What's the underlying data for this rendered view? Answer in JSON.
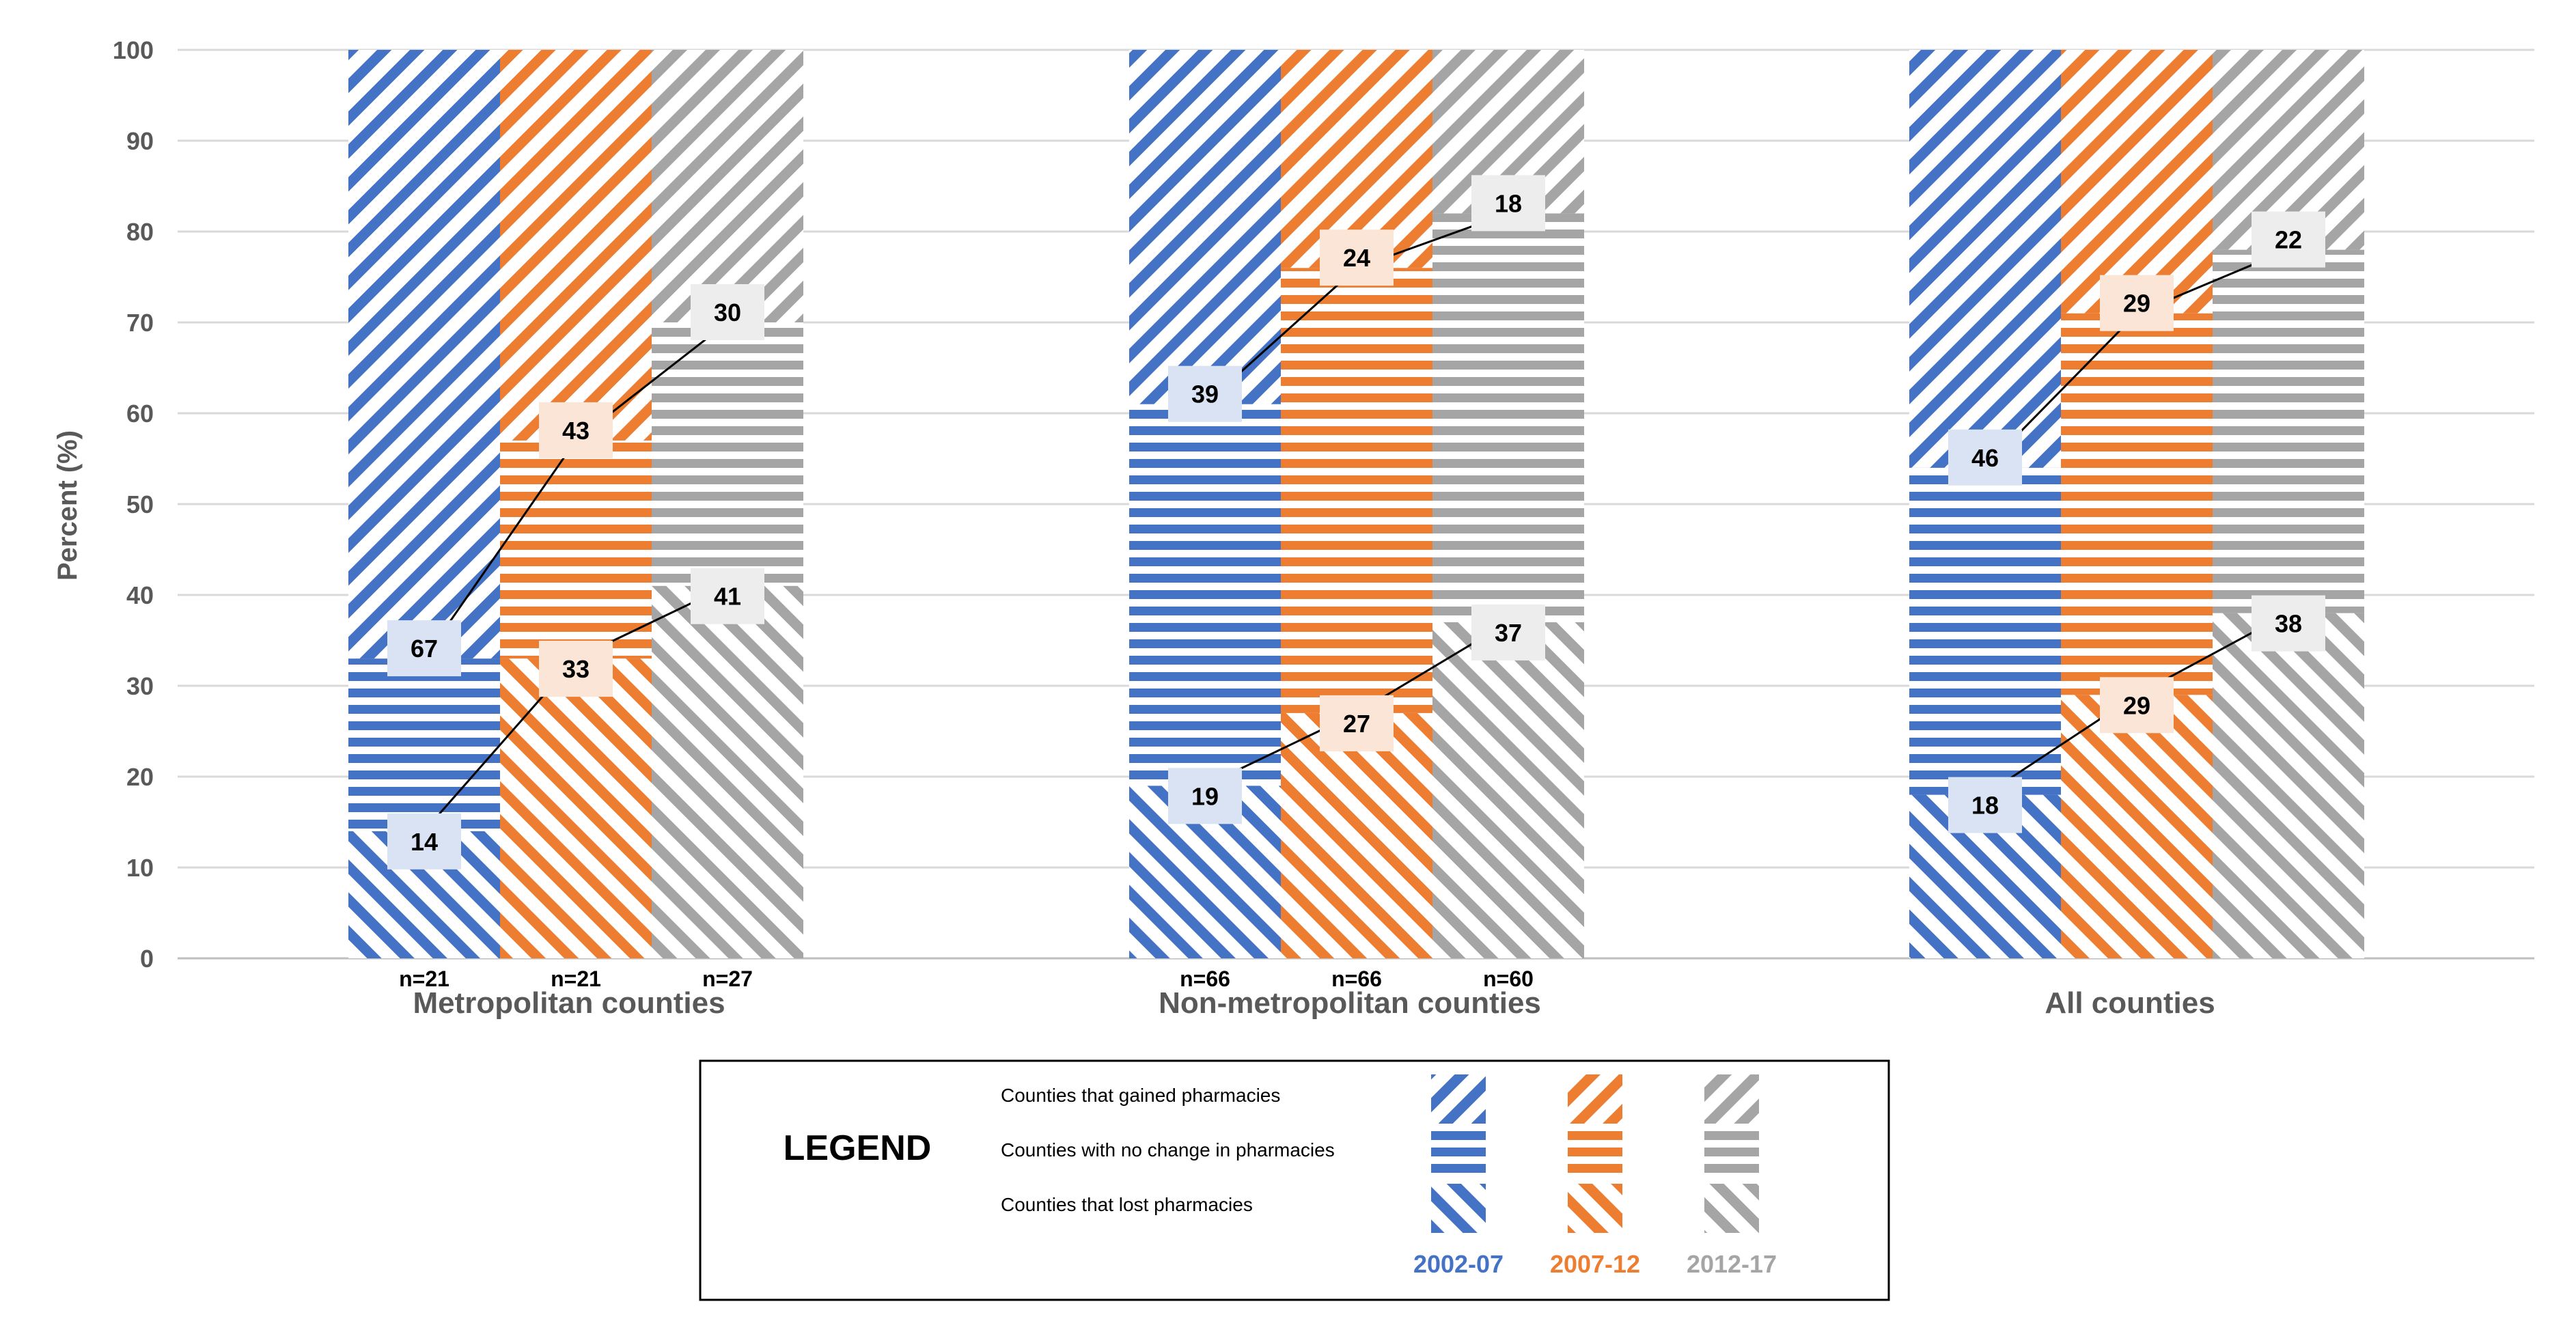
{
  "colors": {
    "blue": "#4472c4",
    "orange": "#ed7d31",
    "gray": "#a5a5a5",
    "blue_label_bg": "#dae3f3",
    "orange_label_bg": "#fbe5d6",
    "gray_label_bg": "#ededed",
    "axis_text": "#595959",
    "gridline": "#d9d9d9"
  },
  "chart_data": {
    "type": "bar",
    "stacked": true,
    "ylabel": "Percent (%)",
    "ylim": [
      0,
      100
    ],
    "yticks": [
      0,
      10,
      20,
      30,
      40,
      50,
      60,
      70,
      80,
      90,
      100
    ],
    "groups": [
      {
        "name": "Metropolitan counties",
        "bars": [
          {
            "period": "2002-07",
            "n": "n=21",
            "lost": 14,
            "no_change": 19,
            "gained": 67,
            "lost_label": "14",
            "gained_label": "67"
          },
          {
            "period": "2007-12",
            "n": "n=21",
            "lost": 33,
            "no_change": 24,
            "gained": 43,
            "lost_label": "33",
            "gained_label": "43"
          },
          {
            "period": "2012-17",
            "n": "n=27",
            "lost": 41,
            "no_change": 29,
            "gained": 30,
            "lost_label": "41",
            "gained_label": "30"
          }
        ]
      },
      {
        "name": "Non-metropolitan counties",
        "bars": [
          {
            "period": "2002-07",
            "n": "n=66",
            "lost": 19,
            "no_change": 42,
            "gained": 39,
            "lost_label": "19",
            "gained_label": "39"
          },
          {
            "period": "2007-12",
            "n": "n=66",
            "lost": 27,
            "no_change": 49,
            "gained": 24,
            "lost_label": "27",
            "gained_label": "24"
          },
          {
            "period": "2012-17",
            "n": "n=60",
            "lost": 37,
            "no_change": 45,
            "gained": 18,
            "lost_label": "37",
            "gained_label": "18"
          }
        ]
      },
      {
        "name": "All counties",
        "bars": [
          {
            "period": "2002-07",
            "n": "",
            "lost": 18,
            "no_change": 36,
            "gained": 46,
            "lost_label": "18",
            "gained_label": "46"
          },
          {
            "period": "2007-12",
            "n": "",
            "lost": 29,
            "no_change": 42,
            "gained": 29,
            "lost_label": "29",
            "gained_label": "29"
          },
          {
            "period": "2012-17",
            "n": "",
            "lost": 38,
            "no_change": 40,
            "gained": 22,
            "lost_label": "38",
            "gained_label": "22"
          }
        ]
      }
    ],
    "legend": {
      "title": "LEGEND",
      "rows": [
        "Counties that gained pharmacies",
        "Counties with no change in pharmacies",
        "Counties that lost pharmacies"
      ],
      "periods": [
        "2002-07",
        "2007-12",
        "2012-17"
      ]
    }
  }
}
